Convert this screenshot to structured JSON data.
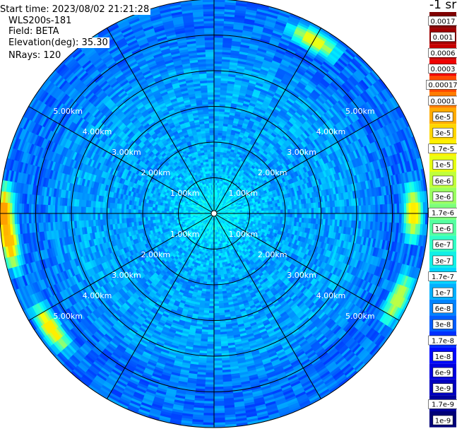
{
  "info": {
    "start_time": "Start time: 2023/08/02 21:21:28",
    "station": "WLS200s-181",
    "field": "Field: BETA",
    "elevation": "Elevation(deg): 35.30",
    "nrays": "NRays: 120"
  },
  "colorbar": {
    "unit_label": "-1 sr",
    "ticks": [
      "0.0017",
      "0.001",
      "0.0006",
      "0.0003",
      "0.00017",
      "0.0001",
      "6e-5",
      "3e-5",
      "1.7e-5",
      "1e-5",
      "6e-6",
      "3e-6",
      "1.7e-6",
      "1e-6",
      "6e-7",
      "3e-7",
      "1.7e-7",
      "1e-7",
      "6e-8",
      "3e-8",
      "1.7e-8",
      "1e-8",
      "6e-9",
      "3e-9",
      "1.7e-9",
      "1e-9"
    ],
    "colors": [
      "#7f0000",
      "#a00000",
      "#c80000",
      "#f00000",
      "#ff4a00",
      "#ff7c00",
      "#ffab00",
      "#ffd600",
      "#fff000",
      "#e6ff12",
      "#c0ff3b",
      "#9aff60",
      "#7dff7a",
      "#55ffa0",
      "#30ffc6",
      "#12f0e6",
      "#00d4ff",
      "#00b0ff",
      "#0084ff",
      "#005cff",
      "#0030ff",
      "#0008ff",
      "#0000e0",
      "#0000c0",
      "#00009c",
      "#000078"
    ]
  },
  "chart_data": {
    "type": "heatmap",
    "title": "",
    "projection": "polar PPI scan",
    "range_unit": "km",
    "max_range_km": 6,
    "range_rings_km": [
      1,
      2,
      3,
      4,
      5
    ],
    "ring_labels": [
      "1.00km",
      "2.00km",
      "3.00km",
      "4.00km",
      "5.00km"
    ],
    "azimuth_spokes_deg": [
      0,
      30,
      60,
      90,
      120,
      150,
      180,
      210,
      240,
      270,
      300,
      330
    ],
    "nrays": 120,
    "colormap": "jet",
    "scale": "log",
    "value_range": [
      1e-09,
      0.0017
    ],
    "typical_value_by_range_km": [
      {
        "range_km": 0.5,
        "value": 1.7e-07
      },
      {
        "range_km": 1.0,
        "value": 1e-07
      },
      {
        "range_km": 2.0,
        "value": 6e-08
      },
      {
        "range_km": 3.0,
        "value": 6e-08
      },
      {
        "range_km": 4.0,
        "value": 6e-08
      },
      {
        "range_km": 5.0,
        "value": 3e-08
      },
      {
        "range_km": 5.9,
        "value": 3e-08
      }
    ],
    "hotspots": [
      {
        "azimuth_deg": 235,
        "range_km": 5.6,
        "value": 1e-05
      },
      {
        "azimuth_deg": 262,
        "range_km": 5.8,
        "value": 1.7e-05
      },
      {
        "azimuth_deg": 270,
        "range_km": 5.9,
        "value": 3e-05
      },
      {
        "azimuth_deg": 90,
        "range_km": 5.6,
        "value": 1e-05
      },
      {
        "azimuth_deg": 115,
        "range_km": 5.7,
        "value": 3e-06
      },
      {
        "azimuth_deg": 30,
        "range_km": 5.6,
        "value": 6e-06
      }
    ]
  }
}
